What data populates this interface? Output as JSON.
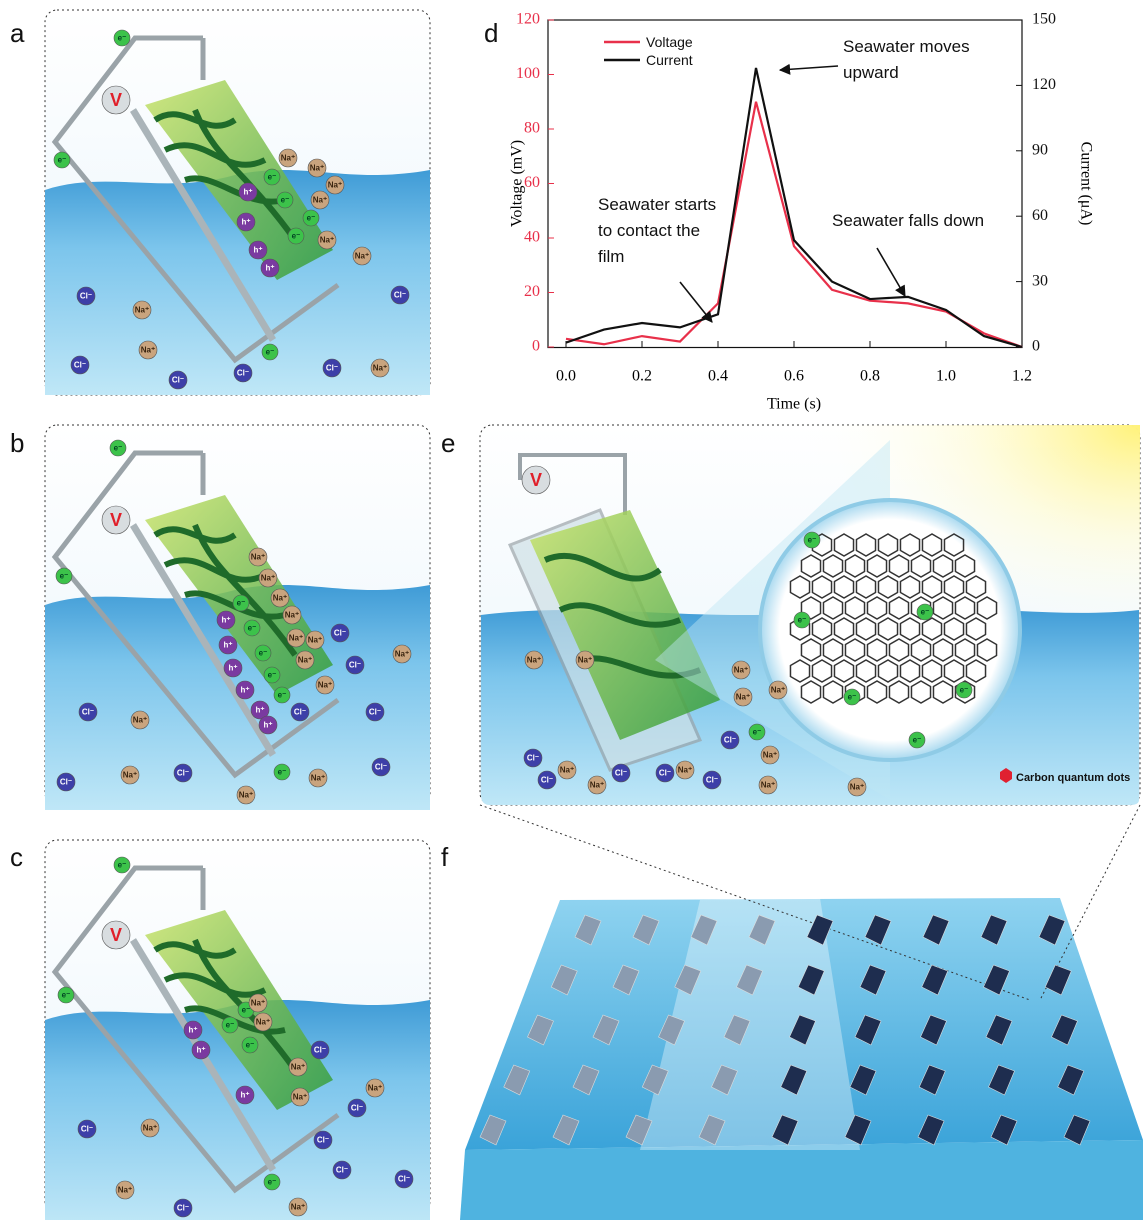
{
  "panels": {
    "a": {
      "label": "a",
      "ions": [
        "e⁻",
        "e⁻",
        "e⁻",
        "V",
        "h⁺",
        "h⁺",
        "h⁺",
        "h⁺",
        "e⁻",
        "e⁻",
        "e⁻",
        "e⁻",
        "Na⁺",
        "Na⁺",
        "Na⁺",
        "Na⁺",
        "Na⁺",
        "Na⁺",
        "Cl⁻",
        "Cl⁻",
        "Cl⁻",
        "Cl⁻",
        "Cl⁻",
        "Cl⁻",
        "Na⁺",
        "Na⁺",
        "Na⁺"
      ]
    },
    "b": {
      "label": "b",
      "ions": [
        "e⁻",
        "e⁻",
        "e⁻",
        "V",
        "h⁺",
        "h⁺",
        "h⁺",
        "h⁺",
        "h⁺",
        "h⁺",
        "e⁻",
        "e⁻",
        "e⁻",
        "e⁻",
        "e⁻",
        "Na⁺",
        "Na⁺",
        "Na⁺",
        "Na⁺",
        "Na⁺",
        "Na⁺",
        "Na⁺",
        "Na⁺",
        "Cl⁻",
        "Cl⁻",
        "Cl⁻",
        "Cl⁻",
        "Cl⁻",
        "Cl⁻",
        "Cl⁻",
        "Cl⁻",
        "Na⁺",
        "Na⁺",
        "Na⁺",
        "Na⁺",
        "Na⁺"
      ]
    },
    "c": {
      "label": "c",
      "ions": [
        "e⁻",
        "e⁻",
        "e⁻",
        "V",
        "h⁺",
        "h⁺",
        "h⁺",
        "e⁻",
        "e⁻",
        "e⁻",
        "Na⁺",
        "Na⁺",
        "Na⁺",
        "Na⁺",
        "Na⁺",
        "Na⁺",
        "Na⁺",
        "Na⁺",
        "Cl⁻",
        "Cl⁻",
        "Cl⁻",
        "Cl⁻",
        "Cl⁻",
        "Cl⁻",
        "Cl⁻"
      ]
    },
    "d": {
      "label": "d"
    },
    "e": {
      "label": "e",
      "legend": "Carbon quantum dots",
      "ions": [
        "V",
        "e⁻",
        "e⁻",
        "e⁻",
        "e⁻",
        "e⁻",
        "e⁻",
        "e⁻",
        "Na⁺",
        "Na⁺",
        "Na⁺",
        "Na⁺",
        "Na⁺",
        "Na⁺",
        "Na⁺",
        "Na⁺",
        "Na⁺",
        "Na⁺",
        "Na⁺",
        "Cl⁻",
        "Cl⁻",
        "Cl⁻",
        "Cl⁻",
        "Cl⁻",
        "Cl⁻"
      ]
    },
    "f": {
      "label": "f"
    }
  },
  "chart_data": {
    "type": "line",
    "x": [
      0,
      0.1,
      0.2,
      0.3,
      0.4,
      0.5,
      0.6,
      0.7,
      0.8,
      0.9,
      1.0,
      1.1,
      1.2
    ],
    "series": [
      {
        "name": "Voltage",
        "color": "#e8304a",
        "values": [
          3,
          1,
          4,
          2,
          16,
          90,
          37,
          21,
          17,
          16,
          13,
          5,
          0
        ]
      },
      {
        "name": "Current",
        "color": "#111111",
        "axis": "y2",
        "values": [
          2,
          8,
          11,
          9,
          15,
          128,
          49,
          30,
          22,
          23,
          17,
          5,
          0
        ]
      }
    ],
    "xlabel": "Time (s)",
    "ylabel": "Voltage (mV)",
    "y2label": "Current (μA)",
    "xlim": [
      0,
      1.2
    ],
    "xticks": [
      {
        "value": 0,
        "label": "0.0"
      },
      0.2,
      0.4,
      0.6,
      0.8,
      {
        "value": 1,
        "label": "1.0"
      },
      1.2
    ],
    "ylim": [
      0,
      120
    ],
    "yticks": [
      0,
      20,
      40,
      60,
      80,
      100,
      120
    ],
    "y2lim": [
      0,
      150
    ],
    "y2ticks": [
      0,
      30,
      60,
      90,
      120,
      150
    ],
    "legend": "top-left",
    "annotations": [
      {
        "lines": [
          "Seawater moves",
          "upward"
        ]
      },
      {
        "lines": [
          "Seawater starts",
          "to contact the",
          "film"
        ]
      },
      {
        "lines": [
          "Seawater falls down"
        ]
      }
    ]
  }
}
